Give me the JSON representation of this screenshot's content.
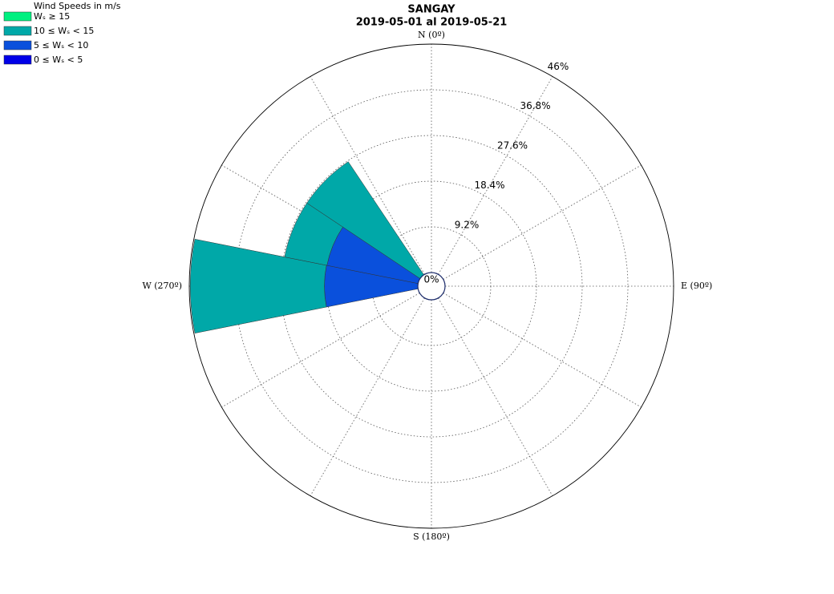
{
  "chart_data": {
    "type": "windrose",
    "title": "SANGAY",
    "subtitle": "2019-05-01 al 2019-05-21",
    "legend_title": "Wind Speeds in m/s",
    "legend": "upper left",
    "grid": true,
    "rlim": [
      0,
      46
    ],
    "rticks": [
      {
        "value": 0,
        "label": "0%"
      },
      {
        "value": 9.2,
        "label": "9.2%"
      },
      {
        "value": 18.4,
        "label": "18.4%"
      },
      {
        "value": 27.6,
        "label": "27.6%"
      },
      {
        "value": 36.8,
        "label": "36.8%"
      },
      {
        "value": 46,
        "label": "46%"
      }
    ],
    "direction_ticks": [
      {
        "value": 0,
        "label": "N (0º)"
      },
      {
        "value": 90,
        "label": "E (90º)"
      },
      {
        "value": 180,
        "label": "S (180º)"
      },
      {
        "value": 270,
        "label": "W (270º)"
      }
    ],
    "series": [
      {
        "name": "Wₛ ≥ 15",
        "color": "#00f080",
        "values": [
          0,
          0,
          0,
          0,
          0,
          0,
          0,
          0,
          0,
          0,
          0,
          0,
          0,
          0,
          0,
          0
        ]
      },
      {
        "name": "10 ≤ Wₛ < 15",
        "color": "#00a8a8",
        "values": [
          0,
          0,
          0,
          0,
          0,
          0,
          0,
          0,
          0,
          0,
          0,
          0,
          27,
          8.7,
          27.4,
          0
        ]
      },
      {
        "name": "5 ≤ Wₛ < 10",
        "color": "#0a50dc",
        "values": [
          0,
          0,
          0,
          0,
          0,
          0,
          0,
          0,
          0,
          0,
          0,
          0,
          18.8,
          18.7,
          0,
          0
        ]
      },
      {
        "name": "0 ≤ Wₛ < 5",
        "color": "#0000e8",
        "values": [
          0,
          0,
          0,
          0,
          0,
          0,
          0,
          0,
          0,
          0,
          0,
          0,
          0,
          0,
          0,
          0
        ]
      }
    ]
  }
}
